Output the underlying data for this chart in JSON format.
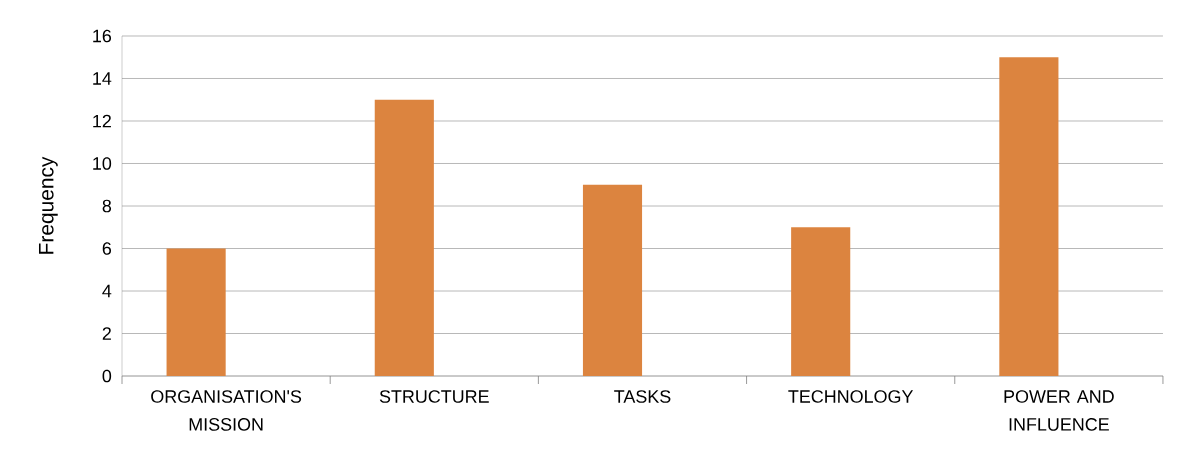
{
  "chart_data": {
    "type": "bar",
    "ylabel": "Frequency",
    "categories": [
      "ORGANISATION'S MISSION",
      "STRUCTURE",
      "TASKS",
      "TECHNOLOGY",
      "POWER AND INFLUENCE"
    ],
    "values": [
      6,
      13,
      9,
      7,
      15
    ],
    "color": "#dc843f",
    "ylim": [
      0,
      16
    ],
    "yticks": [
      0,
      2,
      4,
      6,
      8,
      10,
      12,
      14,
      16
    ],
    "grid": "y"
  }
}
